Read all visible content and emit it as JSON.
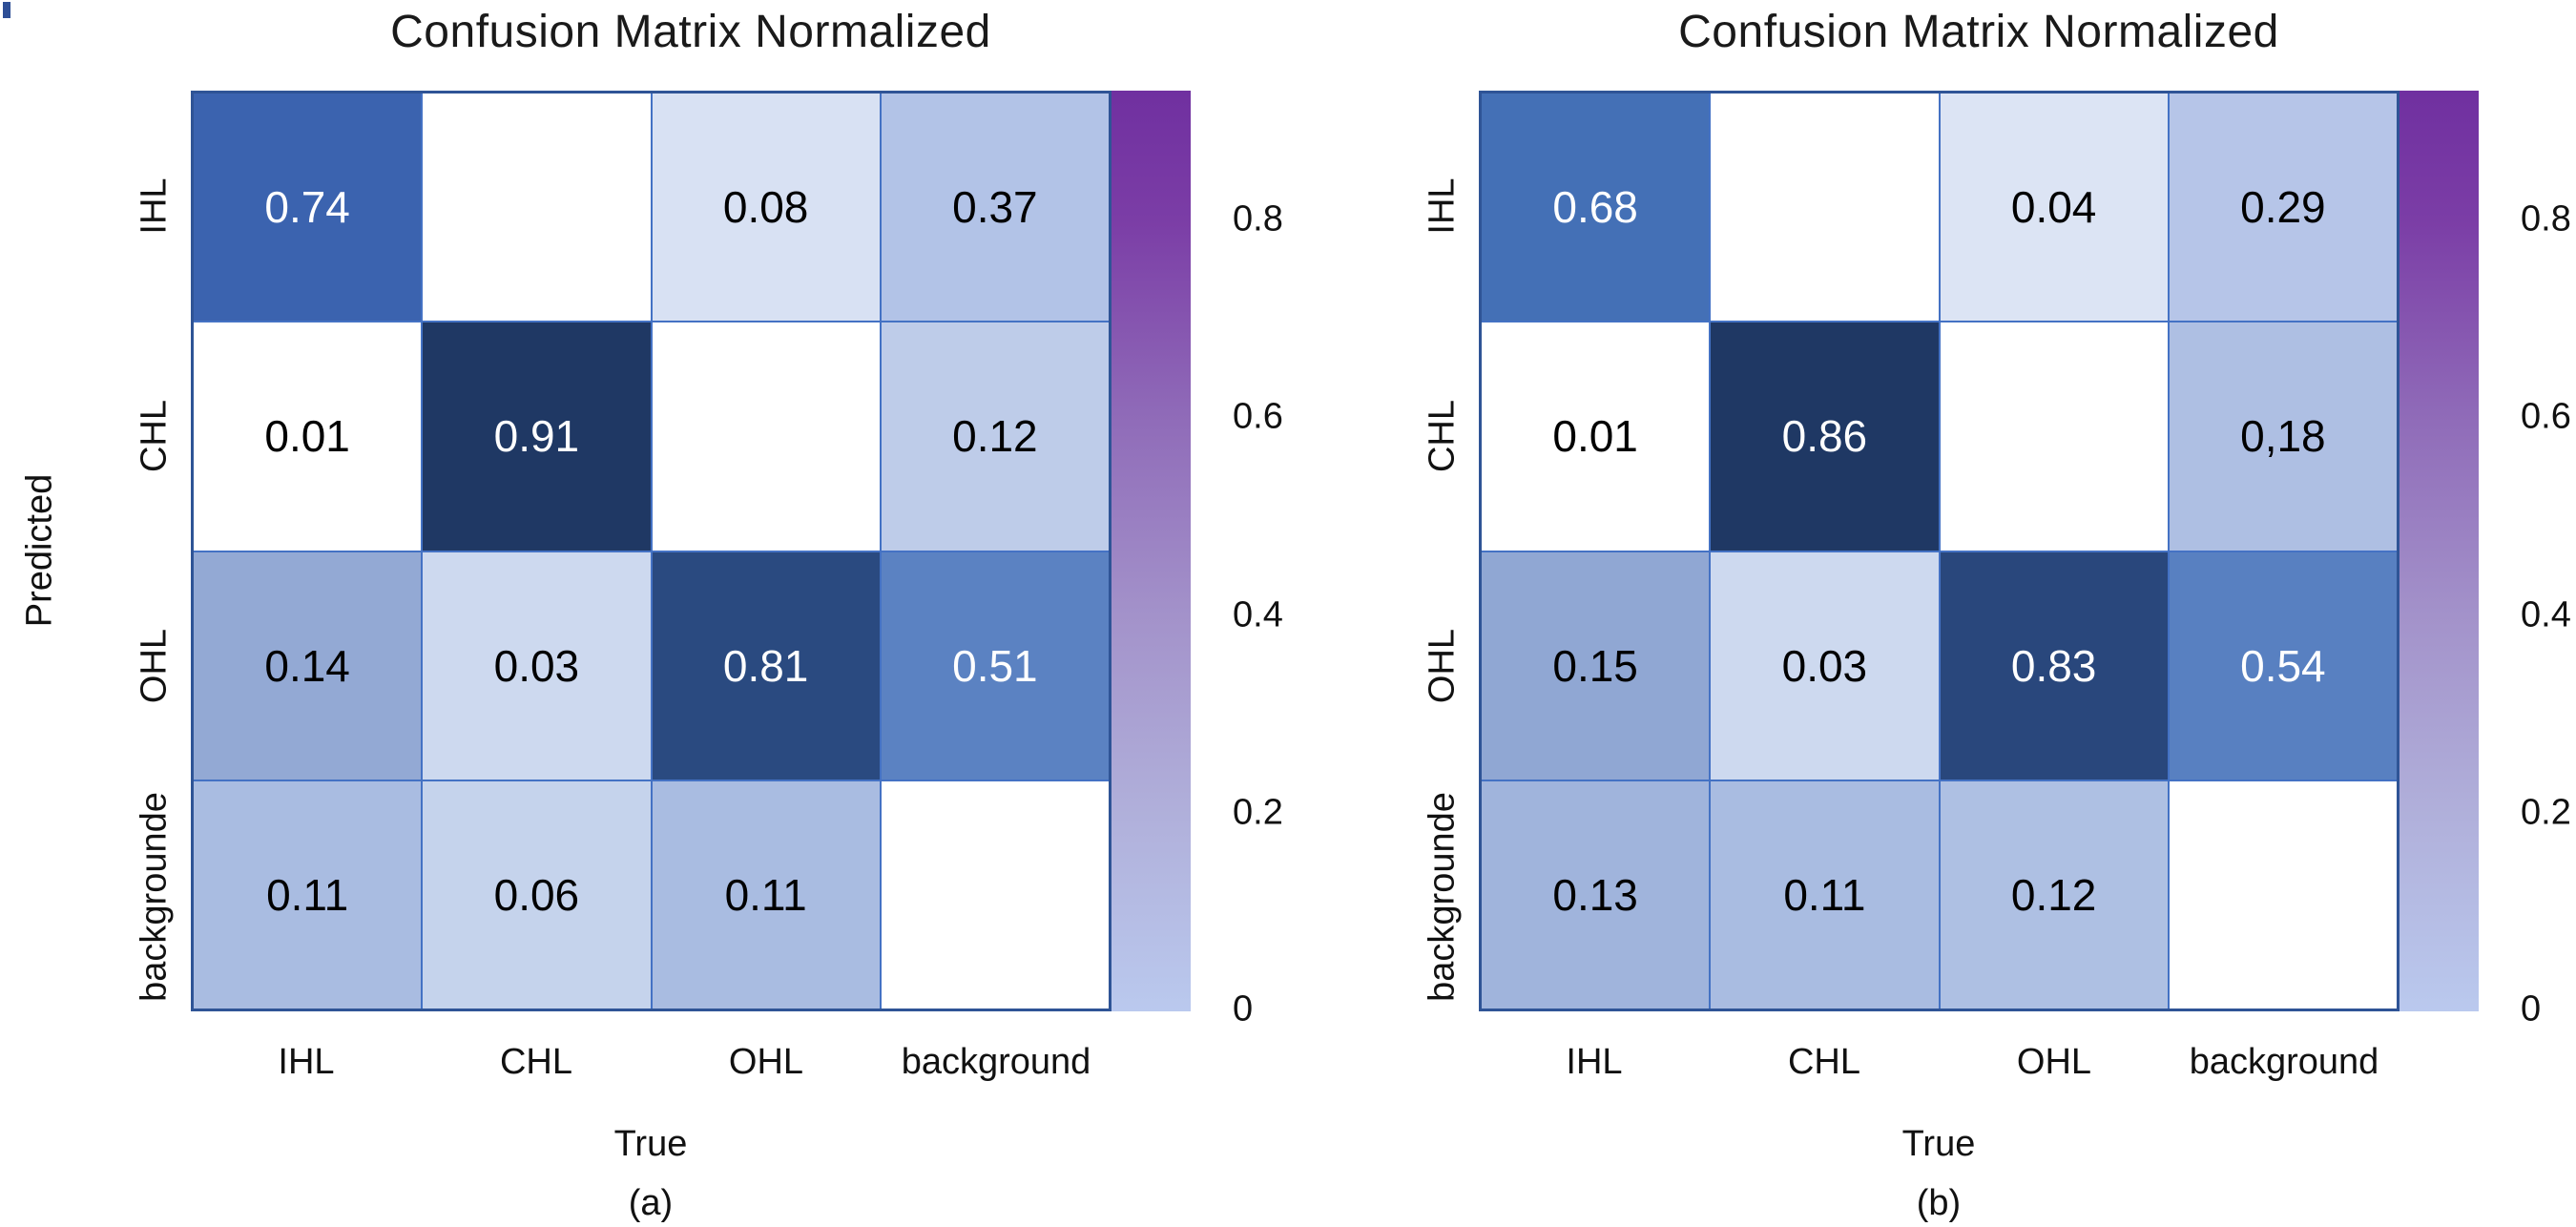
{
  "figure": {
    "colorbar": {
      "ticks": [
        "0.8",
        "0.6",
        "0.4",
        "0.2",
        "0"
      ],
      "tick_values": [
        0.8,
        0.6,
        0.4,
        0.2,
        0
      ],
      "range": [
        0,
        0.93
      ],
      "top_color": "#7030a0",
      "bottom_color": "#bac9ee"
    },
    "gridline_color": "#4472c4",
    "outer_border_color": "#2f5496"
  },
  "panels": [
    {
      "title": "Confusion Matrix Normalized",
      "xlabel": "True",
      "ylabel": "Predicted",
      "caption": "(a)",
      "x_ticks": [
        "IHL",
        "CHL",
        "OHL",
        "background"
      ],
      "y_ticks": [
        "IHL",
        "CHL",
        "OHL",
        "backgrounde"
      ],
      "rows": [
        {
          "cells": [
            {
              "label": "0.74",
              "bg": "#3b63af",
              "fg": "#ffffff"
            },
            {
              "label": "",
              "bg": "#ffffff",
              "fg": "#000000"
            },
            {
              "label": "0.08",
              "bg": "#d8e1f3",
              "fg": "#000000"
            },
            {
              "label": "0.37",
              "bg": "#b2c3e7",
              "fg": "#000000"
            }
          ]
        },
        {
          "cells": [
            {
              "label": "0.01",
              "bg": "#ffffff",
              "fg": "#000000"
            },
            {
              "label": "0.91",
              "bg": "#1f3864",
              "fg": "#ffffff"
            },
            {
              "label": "",
              "bg": "#ffffff",
              "fg": "#000000"
            },
            {
              "label": "0.12",
              "bg": "#becce9",
              "fg": "#000000"
            }
          ]
        },
        {
          "cells": [
            {
              "label": "0.14",
              "bg": "#93a9d4",
              "fg": "#000000"
            },
            {
              "label": "0.03",
              "bg": "#cdd9ef",
              "fg": "#000000"
            },
            {
              "label": "0.81",
              "bg": "#2a4a80",
              "fg": "#ffffff"
            },
            {
              "label": "0.51",
              "bg": "#5b82c2",
              "fg": "#ffffff"
            }
          ]
        },
        {
          "cells": [
            {
              "label": "0.11",
              "bg": "#a9bce1",
              "fg": "#000000"
            },
            {
              "label": "0.06",
              "bg": "#c5d3ec",
              "fg": "#000000"
            },
            {
              "label": "0.11",
              "bg": "#a9bce1",
              "fg": "#000000"
            },
            {
              "label": "",
              "bg": "#ffffff",
              "fg": "#000000"
            }
          ]
        }
      ]
    },
    {
      "title": "Confusion Matrix Normalized",
      "xlabel": "True",
      "ylabel": "",
      "caption": "(b)",
      "x_ticks": [
        "IHL",
        "CHL",
        "OHL",
        "background"
      ],
      "y_ticks": [
        "IHL",
        "CHL",
        "OHL",
        "backgrounde"
      ],
      "rows": [
        {
          "cells": [
            {
              "label": "0.68",
              "bg": "#4470b6",
              "fg": "#ffffff"
            },
            {
              "label": "",
              "bg": "#ffffff",
              "fg": "#000000"
            },
            {
              "label": "0.04",
              "bg": "#dce4f4",
              "fg": "#000000"
            },
            {
              "label": "0.29",
              "bg": "#b6c5e8",
              "fg": "#000000"
            }
          ]
        },
        {
          "cells": [
            {
              "label": "0.01",
              "bg": "#ffffff",
              "fg": "#000000"
            },
            {
              "label": "0.86",
              "bg": "#1f3864",
              "fg": "#ffffff"
            },
            {
              "label": "",
              "bg": "#ffffff",
              "fg": "#000000"
            },
            {
              "label": "0,18",
              "bg": "#aebfe3",
              "fg": "#000000"
            }
          ]
        },
        {
          "cells": [
            {
              "label": "0.15",
              "bg": "#90a7d3",
              "fg": "#000000"
            },
            {
              "label": "0.03",
              "bg": "#cdd9ef",
              "fg": "#000000"
            },
            {
              "label": "0.83",
              "bg": "#29477c",
              "fg": "#ffffff"
            },
            {
              "label": "0.54",
              "bg": "#5880c1",
              "fg": "#ffffff"
            }
          ]
        },
        {
          "cells": [
            {
              "label": "0.13",
              "bg": "#a0b4dc",
              "fg": "#000000"
            },
            {
              "label": "0.11",
              "bg": "#a9bce1",
              "fg": "#000000"
            },
            {
              "label": "0.12",
              "bg": "#aec0e3",
              "fg": "#000000"
            },
            {
              "label": "",
              "bg": "#ffffff",
              "fg": "#000000"
            }
          ]
        }
      ]
    }
  ],
  "chart_data": [
    {
      "type": "heatmap",
      "title": "Confusion Matrix Normalized",
      "xlabel": "True",
      "ylabel": "Predicted",
      "caption": "(a)",
      "x_categories": [
        "IHL",
        "CHL",
        "OHL",
        "background"
      ],
      "y_categories": [
        "IHL",
        "CHL",
        "OHL",
        "backgrounde"
      ],
      "values": [
        [
          0.74,
          null,
          0.08,
          0.37
        ],
        [
          0.01,
          0.91,
          null,
          0.12
        ],
        [
          0.14,
          0.03,
          0.81,
          0.51
        ],
        [
          0.11,
          0.06,
          0.11,
          null
        ]
      ],
      "colorbar_ticks": [
        0.8,
        0.6,
        0.4,
        0.2,
        0
      ],
      "colorbar_range": [
        0,
        0.93
      ],
      "legend_position": "right",
      "grid": true
    },
    {
      "type": "heatmap",
      "title": "Confusion Matrix Normalized",
      "xlabel": "True",
      "ylabel": "",
      "caption": "(b)",
      "x_categories": [
        "IHL",
        "CHL",
        "OHL",
        "background"
      ],
      "y_categories": [
        "IHL",
        "CHL",
        "OHL",
        "backgrounde"
      ],
      "values": [
        [
          0.68,
          null,
          0.04,
          0.29
        ],
        [
          0.01,
          0.86,
          null,
          0.18
        ],
        [
          0.15,
          0.03,
          0.83,
          0.54
        ],
        [
          0.13,
          0.11,
          0.12,
          null
        ]
      ],
      "colorbar_ticks": [
        0.8,
        0.6,
        0.4,
        0.2,
        0
      ],
      "colorbar_range": [
        0,
        0.93
      ],
      "legend_position": "right",
      "grid": true
    }
  ]
}
